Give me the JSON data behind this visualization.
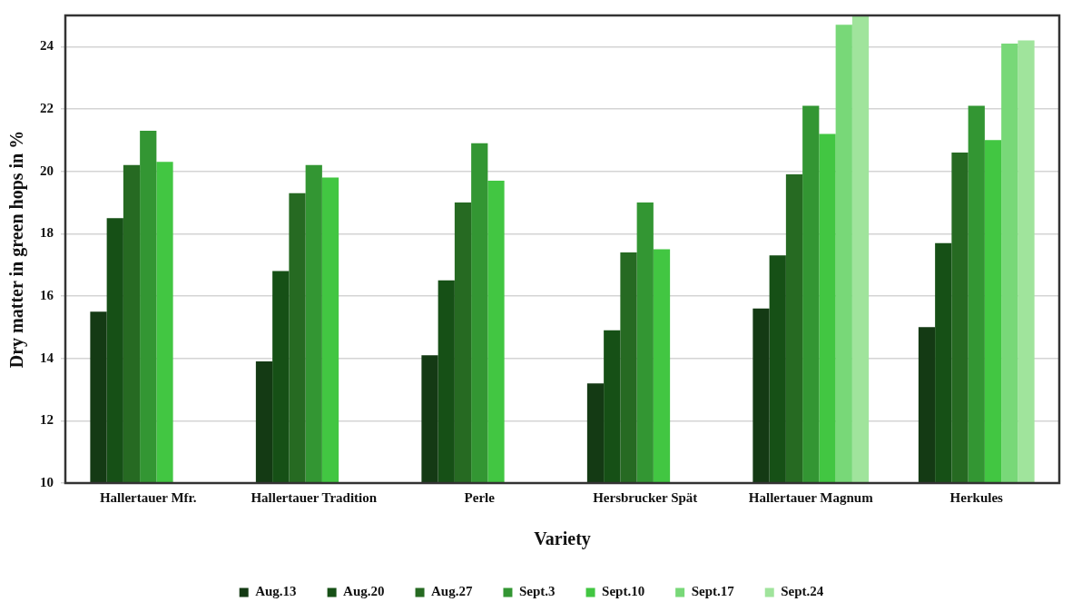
{
  "chart_data": {
    "type": "bar",
    "xlabel": "Variety",
    "ylabel": "Dry matter in green hops in %",
    "categories": [
      "Hallertauer Mfr.",
      "Hallertauer Tradition",
      "Perle",
      "Hersbrucker Spät",
      "Hallertauer Magnum",
      "Herkules"
    ],
    "series": [
      {
        "name": "Aug.13",
        "color": "#143a14",
        "values": [
          15.5,
          13.9,
          14.1,
          13.2,
          15.6,
          15.0
        ]
      },
      {
        "name": "Aug.20",
        "color": "#165016",
        "values": [
          18.5,
          16.8,
          16.5,
          14.9,
          17.3,
          17.7
        ]
      },
      {
        "name": "Aug.27",
        "color": "#266a22",
        "values": [
          20.2,
          19.3,
          19.0,
          17.4,
          19.9,
          20.6
        ]
      },
      {
        "name": "Sept.3",
        "color": "#339633",
        "values": [
          21.3,
          20.2,
          20.9,
          19.0,
          22.1,
          22.1
        ]
      },
      {
        "name": "Sept.10",
        "color": "#42c642",
        "values": [
          20.3,
          19.8,
          19.7,
          17.5,
          21.2,
          21.0
        ]
      },
      {
        "name": "Sept.17",
        "color": "#78d878",
        "values": [
          null,
          null,
          null,
          null,
          24.7,
          24.1
        ]
      },
      {
        "name": "Sept.24",
        "color": "#a0e49c",
        "values": [
          null,
          null,
          null,
          null,
          25.0,
          24.2
        ]
      }
    ],
    "ylim": [
      10,
      25
    ],
    "yticks": [
      10,
      12,
      14,
      16,
      18,
      20,
      22,
      24
    ],
    "grid": "y",
    "legend": "bottom"
  }
}
